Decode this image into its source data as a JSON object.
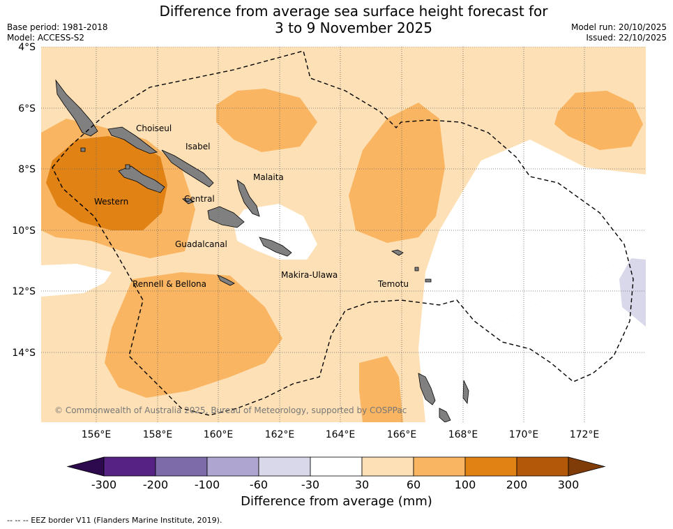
{
  "header": {
    "title_line1": "Difference from average sea surface height forecast for",
    "title_line2": "3 to 9 November 2025",
    "base_period": "Base period: 1981-2018",
    "model": "Model: ACCESS-S2",
    "model_run": "Model run: 20/10/2025",
    "issued": "Issued: 22/10/2025"
  },
  "map": {
    "lat_labels": [
      "4°S",
      "6°S",
      "8°S",
      "10°S",
      "12°S",
      "14°S"
    ],
    "lon_labels": [
      "156°E",
      "158°E",
      "160°E",
      "162°E",
      "164°E",
      "166°E",
      "168°E",
      "170°E",
      "172°E"
    ],
    "provinces": [
      "Choiseul",
      "Isabel",
      "Malaita",
      "Western",
      "Central",
      "Guadalcanal",
      "Makira-Ulawa",
      "Rennell & Bellona",
      "Temotu"
    ],
    "copyright": "© Commonwealth of Australia 2025, Bureau of Meteorology, supported by COSPPac"
  },
  "colorbar": {
    "title": "Difference from average (mm)",
    "ticks": [
      "-300",
      "-200",
      "-100",
      "-60",
      "-30",
      "30",
      "60",
      "100",
      "200",
      "300"
    ],
    "colors": [
      "#2d0a4e",
      "#562385",
      "#7d6ba9",
      "#aea6d0",
      "#d8d8ea",
      "#ffffff",
      "#fde0b5",
      "#f9b562",
      "#e08214",
      "#b35808",
      "#7f3b08"
    ]
  },
  "footnote": "--  --  -- EEZ border V11 (Flanders Marine Institute, 2019)."
}
